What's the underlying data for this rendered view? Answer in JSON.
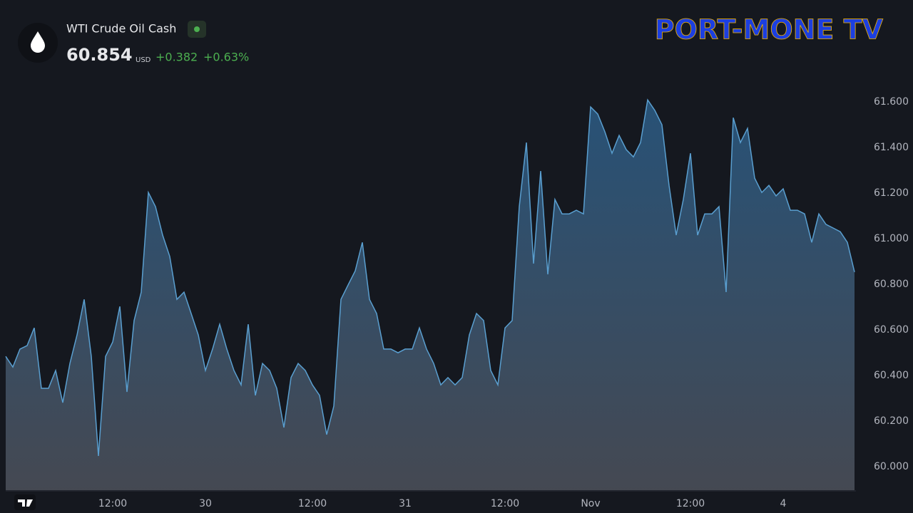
{
  "header": {
    "title": "WTI Crude Oil Cash",
    "price": 60.854,
    "currency": "USD",
    "change": 0.382,
    "change_label": "+0.382",
    "change_pct": 0.63,
    "change_pct_label": "+0.63%"
  },
  "brand": "PORT-MONE TV",
  "chart_data": {
    "type": "area",
    "color": "#5a9fd0",
    "grid": false,
    "categories": [
      null,
      null,
      null,
      null,
      null,
      null,
      null,
      null,
      null,
      null,
      null,
      null,
      null,
      null,
      null,
      "12:00",
      null,
      null,
      null,
      null,
      null,
      null,
      null,
      null,
      null,
      null,
      null,
      null,
      "30",
      null,
      null,
      null,
      null,
      null,
      null,
      null,
      null,
      null,
      null,
      null,
      null,
      null,
      null,
      "12:00",
      null,
      null,
      null,
      null,
      null,
      null,
      null,
      null,
      null,
      null,
      null,
      null,
      "31",
      null,
      null,
      null,
      null,
      null,
      null,
      null,
      null,
      null,
      null,
      null,
      null,
      null,
      "12:00",
      null,
      null,
      null,
      null,
      null,
      null,
      null,
      null,
      null,
      null,
      null,
      "Nov",
      null,
      null,
      null,
      null,
      null,
      null,
      null,
      null,
      null,
      null,
      null,
      null,
      null,
      "12:00",
      null,
      null,
      null,
      null,
      null,
      null,
      null,
      null,
      null,
      null,
      null,
      null,
      "4",
      null,
      null,
      null,
      null,
      null,
      null,
      null,
      null,
      null,
      null
    ],
    "values": [
      60.484,
      60.437,
      60.516,
      60.531,
      60.609,
      60.344,
      60.344,
      60.422,
      60.281,
      60.453,
      60.578,
      60.734,
      60.484,
      60.047,
      60.484,
      60.547,
      60.703,
      60.328,
      60.641,
      60.766,
      61.203,
      61.141,
      61.016,
      60.922,
      60.734,
      60.766,
      60.672,
      60.578,
      60.422,
      60.516,
      60.625,
      60.516,
      60.422,
      60.359,
      60.625,
      60.313,
      60.453,
      60.422,
      60.344,
      60.172,
      60.391,
      60.453,
      60.422,
      60.359,
      60.313,
      60.141,
      60.266,
      60.734,
      60.797,
      60.859,
      60.984,
      60.734,
      60.672,
      60.516,
      60.516,
      60.5,
      60.516,
      60.516,
      60.609,
      60.516,
      60.453,
      60.359,
      60.391,
      60.359,
      60.391,
      60.578,
      60.672,
      60.641,
      60.422,
      60.359,
      60.609,
      60.641,
      61.141,
      61.422,
      60.891,
      61.297,
      60.844,
      61.172,
      61.109,
      61.109,
      61.125,
      61.109,
      61.578,
      61.547,
      61.469,
      61.375,
      61.453,
      61.391,
      61.359,
      61.422,
      61.609,
      61.563,
      61.5,
      61.234,
      61.016,
      61.172,
      61.375,
      61.016,
      61.109,
      61.109,
      61.141,
      60.766,
      61.531,
      61.422,
      61.484,
      61.266,
      61.203,
      61.234,
      61.188,
      61.219,
      61.125,
      61.125,
      61.109,
      60.984,
      61.109,
      61.063,
      61.047,
      61.031,
      60.984,
      60.854
    ],
    "ylim": [
      59.897,
      62.016
    ],
    "yticks": [
      {
        "value": 60,
        "label": "60.000"
      },
      {
        "value": 60.2,
        "label": "60.200"
      },
      {
        "value": 60.4,
        "label": "60.400"
      },
      {
        "value": 60.6,
        "label": "60.600"
      },
      {
        "value": 60.8,
        "label": "60.800"
      },
      {
        "value": 61,
        "label": "61.000"
      },
      {
        "value": 61.2,
        "label": "61.200"
      },
      {
        "value": 61.4,
        "label": "61.400"
      },
      {
        "value": 61.6,
        "label": "61.600"
      }
    ]
  }
}
